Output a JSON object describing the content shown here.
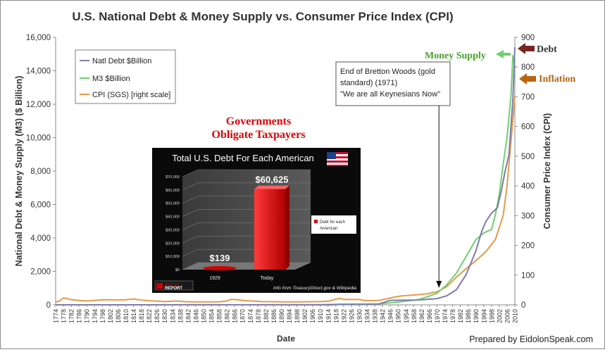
{
  "chart_data": {
    "type": "line",
    "title": "U.S. National Debt & Money Supply vs. Consumer Price Index (CPI)",
    "xlabel": "Date",
    "ylabel": "National Debt & Money Supply (M3) ($ Billion)",
    "ylabel_right": "Consumer Price Index (CPI)",
    "ylim": [
      0,
      16000
    ],
    "ylim_right": [
      0,
      900
    ],
    "xlim": [
      1774,
      2010
    ],
    "y_ticks": [
      "0",
      "2,000",
      "4,000",
      "6,000",
      "8,000",
      "10,000",
      "12,000",
      "14,000",
      "16,000"
    ],
    "y_ticks_right": [
      "0",
      "100",
      "200",
      "300",
      "400",
      "500",
      "600",
      "700",
      "800",
      "900"
    ],
    "x_ticks": [
      "1774",
      "1778",
      "1782",
      "1786",
      "1790",
      "1794",
      "1798",
      "1802",
      "1806",
      "1810",
      "1814",
      "1818",
      "1822",
      "1826",
      "1830",
      "1834",
      "1838",
      "1842",
      "1846",
      "1850",
      "1854",
      "1858",
      "1862",
      "1866",
      "1870",
      "1874",
      "1878",
      "1882",
      "1886",
      "1890",
      "1894",
      "1898",
      "1902",
      "1906",
      "1910",
      "1914",
      "1918",
      "1922",
      "1926",
      "1930",
      "1934",
      "1938",
      "1942",
      "1946",
      "1950",
      "1954",
      "1958",
      "1962",
      "1966",
      "1970",
      "1974",
      "1978",
      "1982",
      "1986",
      "1990",
      "1994",
      "1998",
      "2002",
      "2006",
      "2010"
    ],
    "grid": false,
    "legend_position": "top-left",
    "series": [
      {
        "name": "Natl Debt $Billion",
        "color": "#7f7bb0",
        "axis": "left",
        "points": [
          [
            1774,
            0
          ],
          [
            1860,
            0
          ],
          [
            1865,
            3
          ],
          [
            1900,
            1
          ],
          [
            1916,
            1
          ],
          [
            1919,
            26
          ],
          [
            1930,
            16
          ],
          [
            1940,
            43
          ],
          [
            1946,
            270
          ],
          [
            1960,
            290
          ],
          [
            1970,
            370
          ],
          [
            1975,
            540
          ],
          [
            1980,
            910
          ],
          [
            1985,
            1820
          ],
          [
            1990,
            3230
          ],
          [
            1993,
            4400
          ],
          [
            1995,
            4970
          ],
          [
            1998,
            5480
          ],
          [
            2001,
            5800
          ],
          [
            2003,
            6800
          ],
          [
            2005,
            8000
          ],
          [
            2007,
            9000
          ],
          [
            2008,
            10700
          ],
          [
            2009,
            12300
          ],
          [
            2010,
            15400
          ]
        ]
      },
      {
        "name": "M3 $Billion",
        "color": "#6fcf6f",
        "axis": "left",
        "points": [
          [
            1906,
            0
          ],
          [
            1920,
            40
          ],
          [
            1930,
            50
          ],
          [
            1940,
            60
          ],
          [
            1950,
            170
          ],
          [
            1960,
            300
          ],
          [
            1965,
            480
          ],
          [
            1970,
            700
          ],
          [
            1975,
            1200
          ],
          [
            1980,
            1900
          ],
          [
            1985,
            2900
          ],
          [
            1990,
            3900
          ],
          [
            1994,
            4300
          ],
          [
            1998,
            4500
          ],
          [
            2000,
            5400
          ],
          [
            2002,
            6600
          ],
          [
            2004,
            8400
          ],
          [
            2006,
            10000
          ],
          [
            2008,
            12500
          ],
          [
            2009,
            14900
          ],
          [
            2010,
            14300
          ]
        ]
      },
      {
        "name": "CPI (SGS) [right scale]",
        "color": "#e39b4a",
        "axis": "right",
        "points": [
          [
            1774,
            9
          ],
          [
            1776,
            13
          ],
          [
            1778,
            23
          ],
          [
            1780,
            21
          ],
          [
            1782,
            17
          ],
          [
            1786,
            15
          ],
          [
            1790,
            13
          ],
          [
            1796,
            16
          ],
          [
            1800,
            17
          ],
          [
            1806,
            16
          ],
          [
            1810,
            17
          ],
          [
            1814,
            20
          ],
          [
            1818,
            16
          ],
          [
            1822,
            14
          ],
          [
            1830,
            11
          ],
          [
            1836,
            13
          ],
          [
            1842,
            10
          ],
          [
            1850,
            10
          ],
          [
            1858,
            10
          ],
          [
            1862,
            13
          ],
          [
            1864,
            18
          ],
          [
            1866,
            18
          ],
          [
            1870,
            15
          ],
          [
            1880,
            11
          ],
          [
            1890,
            10
          ],
          [
            1900,
            10
          ],
          [
            1910,
            11
          ],
          [
            1914,
            12
          ],
          [
            1918,
            19
          ],
          [
            1920,
            22
          ],
          [
            1922,
            18
          ],
          [
            1930,
            18
          ],
          [
            1933,
            14
          ],
          [
            1940,
            15
          ],
          [
            1944,
            20
          ],
          [
            1948,
            26
          ],
          [
            1952,
            30
          ],
          [
            1956,
            32
          ],
          [
            1960,
            34
          ],
          [
            1965,
            37
          ],
          [
            1970,
            44
          ],
          [
            1975,
            61
          ],
          [
            1980,
            93
          ],
          [
            1985,
            122
          ],
          [
            1990,
            149
          ],
          [
            1995,
            178
          ],
          [
            2000,
            220
          ],
          [
            2004,
            300
          ],
          [
            2006,
            400
          ],
          [
            2008,
            550
          ],
          [
            2010,
            700
          ]
        ]
      }
    ],
    "annotations": {
      "bretton_woods": [
        "End of Bretton Woods (gold",
        "standard) (1971)",
        "\"We are all Keynesians Now\""
      ],
      "bretton_woods_year": 1971,
      "money_supply_label": "Money Supply",
      "debt_label": "Debt",
      "inflation_label": "Inflation",
      "colors": {
        "money_supply": "#4aa02c",
        "debt_arrow": "#7a2320",
        "inflation": "#b8650f"
      }
    },
    "credit": "Prepared by EidolonSpeak.com"
  },
  "inset": {
    "heading": [
      "Governments",
      "Obligate Taxpayers"
    ],
    "heading_color": "#e00000",
    "title": "Total U.S. Debt For Each American",
    "y_ticks": [
      "$0",
      "$10,000",
      "$20,000",
      "$30,000",
      "$40,000",
      "$50,000",
      "$60,000",
      "$70,000"
    ],
    "ylim": [
      0,
      70000
    ],
    "categories": [
      "1929",
      "Today"
    ],
    "values": [
      139,
      60625
    ],
    "value_labels": [
      "$139",
      "$60,625"
    ],
    "legend": [
      "Debt  for each",
      "American"
    ],
    "logo": [
      "SRSrocco",
      "REPORT"
    ],
    "source": "Info from TreasuryDirect.gov & Wikipedia",
    "bar_color": "#d40000"
  }
}
